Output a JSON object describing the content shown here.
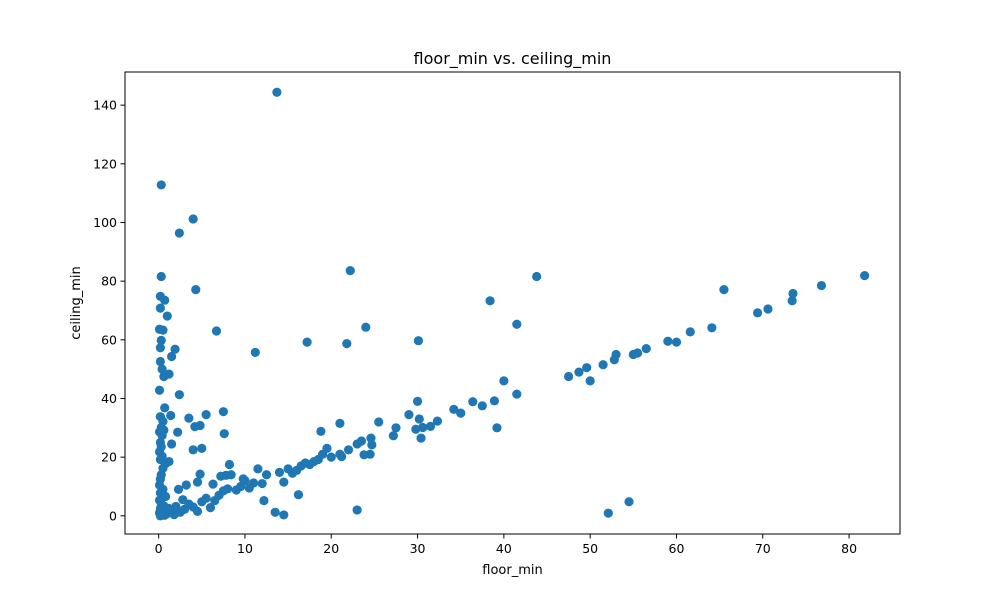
{
  "chart_data": {
    "type": "scatter",
    "title": "floor_min vs. ceiling_min",
    "xlabel": "floor_min",
    "ylabel": "ceiling_min",
    "xlim": [
      -3.9,
      85.9
    ],
    "ylim": [
      -6.2,
      151.3
    ],
    "xticks": [
      0,
      10,
      20,
      30,
      40,
      50,
      60,
      70,
      80
    ],
    "yticks": [
      0,
      20,
      40,
      60,
      80,
      100,
      120,
      140
    ],
    "grid": false,
    "legend": "none",
    "color": "#1f77b4",
    "points": [
      [
        0.3,
        112.8
      ],
      [
        4.0,
        101.2
      ],
      [
        2.4,
        96.4
      ],
      [
        0.3,
        81.6
      ],
      [
        4.3,
        77.1
      ],
      [
        0.2,
        74.8
      ],
      [
        0.7,
        73.5
      ],
      [
        0.2,
        70.8
      ],
      [
        1.0,
        68.1
      ],
      [
        0.1,
        63.6
      ],
      [
        0.5,
        63.3
      ],
      [
        6.7,
        63.0
      ],
      [
        0.3,
        59.8
      ],
      [
        0.2,
        57.3
      ],
      [
        1.9,
        56.8
      ],
      [
        1.5,
        54.3
      ],
      [
        0.2,
        52.6
      ],
      [
        0.4,
        50.0
      ],
      [
        0.6,
        47.5
      ],
      [
        1.2,
        48.3
      ],
      [
        0.1,
        42.8
      ],
      [
        2.4,
        41.3
      ],
      [
        0.7,
        36.8
      ],
      [
        1.4,
        34.2
      ],
      [
        0.2,
        33.8
      ],
      [
        0.5,
        32.2
      ],
      [
        0.3,
        30.1
      ],
      [
        0.1,
        28.6
      ],
      [
        0.4,
        27.4
      ],
      [
        0.6,
        29.2
      ],
      [
        0.2,
        25.0
      ],
      [
        0.3,
        23.5
      ],
      [
        0.1,
        21.8
      ],
      [
        0.4,
        20.3
      ],
      [
        0.2,
        19.2
      ],
      [
        0.8,
        17.8
      ],
      [
        1.2,
        18.5
      ],
      [
        0.5,
        16.2
      ],
      [
        0.3,
        14.0
      ],
      [
        0.2,
        12.5
      ],
      [
        0.1,
        10.5
      ],
      [
        0.5,
        9.0
      ],
      [
        0.2,
        7.8
      ],
      [
        0.8,
        6.6
      ],
      [
        0.1,
        5.3
      ],
      [
        0.3,
        4.2
      ],
      [
        0.6,
        3.4
      ],
      [
        0.2,
        2.5
      ],
      [
        0.4,
        1.8
      ],
      [
        0.1,
        1.0
      ],
      [
        0.3,
        0.5
      ],
      [
        0.7,
        0.2
      ],
      [
        0.2,
        0.0
      ],
      [
        1.0,
        0.8
      ],
      [
        1.5,
        1.5
      ],
      [
        1.2,
        2.5
      ],
      [
        2.0,
        3.2
      ],
      [
        2.5,
        1.2
      ],
      [
        1.8,
        0.4
      ],
      [
        3.0,
        2.2
      ],
      [
        3.5,
        4.0
      ],
      [
        2.8,
        5.5
      ],
      [
        4.0,
        3.0
      ],
      [
        4.5,
        1.5
      ],
      [
        5.0,
        4.8
      ],
      [
        5.5,
        6.0
      ],
      [
        6.0,
        2.8
      ],
      [
        6.5,
        5.2
      ],
      [
        7.0,
        7.0
      ],
      [
        7.5,
        8.5
      ],
      [
        8.0,
        9.2
      ],
      [
        2.3,
        9.0
      ],
      [
        3.2,
        10.5
      ],
      [
        4.5,
        11.5
      ],
      [
        4.8,
        14.2
      ],
      [
        2.2,
        28.5
      ],
      [
        1.5,
        24.5
      ],
      [
        3.5,
        33.3
      ],
      [
        4.2,
        30.4
      ],
      [
        4.8,
        30.8
      ],
      [
        5.5,
        34.5
      ],
      [
        7.5,
        35.5
      ],
      [
        7.6,
        28.0
      ],
      [
        5.0,
        23.0
      ],
      [
        4.0,
        22.5
      ],
      [
        6.3,
        10.8
      ],
      [
        7.2,
        13.5
      ],
      [
        7.8,
        13.8
      ],
      [
        8.4,
        14.0
      ],
      [
        8.2,
        17.5
      ],
      [
        9.0,
        8.8
      ],
      [
        9.5,
        10.0
      ],
      [
        10.0,
        12.0
      ],
      [
        10.5,
        9.5
      ],
      [
        11.0,
        11.2
      ],
      [
        11.5,
        16.0
      ],
      [
        12.0,
        11.0
      ],
      [
        12.5,
        14.0
      ],
      [
        9.8,
        12.6
      ],
      [
        12.2,
        5.2
      ],
      [
        13.5,
        1.2
      ],
      [
        14.5,
        0.3
      ],
      [
        14.0,
        14.8
      ],
      [
        15.0,
        16.0
      ],
      [
        15.5,
        14.5
      ],
      [
        16.0,
        15.5
      ],
      [
        16.5,
        17.0
      ],
      [
        17.0,
        18.0
      ],
      [
        17.5,
        17.5
      ],
      [
        18.0,
        18.5
      ],
      [
        16.2,
        7.2
      ],
      [
        14.5,
        11.5
      ],
      [
        18.5,
        19.2
      ],
      [
        19.0,
        21.0
      ],
      [
        19.5,
        23.0
      ],
      [
        20.0,
        20.0
      ],
      [
        21.0,
        21.0
      ],
      [
        21.2,
        20.2
      ],
      [
        22.0,
        22.5
      ],
      [
        23.0,
        24.5
      ],
      [
        23.5,
        25.5
      ],
      [
        23.0,
        2.0
      ],
      [
        23.8,
        20.8
      ],
      [
        24.5,
        21.0
      ],
      [
        24.6,
        26.5
      ],
      [
        24.7,
        24.2
      ],
      [
        18.8,
        28.8
      ],
      [
        21.0,
        31.5
      ],
      [
        25.5,
        32.0
      ],
      [
        27.2,
        27.3
      ],
      [
        27.5,
        30.0
      ],
      [
        29.0,
        34.5
      ],
      [
        29.8,
        29.5
      ],
      [
        30.0,
        39.0
      ],
      [
        30.2,
        33.0
      ],
      [
        30.4,
        26.5
      ],
      [
        30.6,
        30.1
      ],
      [
        31.5,
        30.5
      ],
      [
        32.3,
        32.3
      ],
      [
        34.2,
        36.3
      ],
      [
        35.0,
        35.0
      ],
      [
        36.4,
        38.9
      ],
      [
        37.5,
        37.5
      ],
      [
        38.9,
        39.2
      ],
      [
        39.2,
        30.0
      ],
      [
        40.0,
        46.0
      ],
      [
        41.5,
        41.5
      ],
      [
        43.8,
        81.6
      ],
      [
        41.5,
        65.3
      ],
      [
        38.4,
        73.3
      ],
      [
        30.1,
        59.7
      ],
      [
        24.0,
        64.3
      ],
      [
        22.2,
        83.6
      ],
      [
        21.8,
        58.7
      ],
      [
        17.2,
        59.2
      ],
      [
        11.2,
        55.7
      ],
      [
        13.7,
        144.4
      ],
      [
        47.5,
        47.5
      ],
      [
        48.7,
        49.0
      ],
      [
        49.6,
        50.5
      ],
      [
        50.0,
        46.0
      ],
      [
        51.5,
        51.5
      ],
      [
        52.8,
        53.2
      ],
      [
        53.0,
        55.0
      ],
      [
        55.0,
        55.0
      ],
      [
        55.5,
        55.5
      ],
      [
        56.5,
        57.0
      ],
      [
        59.0,
        59.5
      ],
      [
        60.0,
        59.2
      ],
      [
        61.6,
        62.7
      ],
      [
        64.1,
        64.1
      ],
      [
        65.5,
        77.1
      ],
      [
        69.4,
        69.2
      ],
      [
        70.6,
        70.5
      ],
      [
        73.4,
        73.3
      ],
      [
        73.5,
        75.8
      ],
      [
        76.8,
        78.5
      ],
      [
        81.8,
        81.9
      ],
      [
        52.1,
        0.9
      ],
      [
        54.5,
        4.8
      ]
    ]
  }
}
